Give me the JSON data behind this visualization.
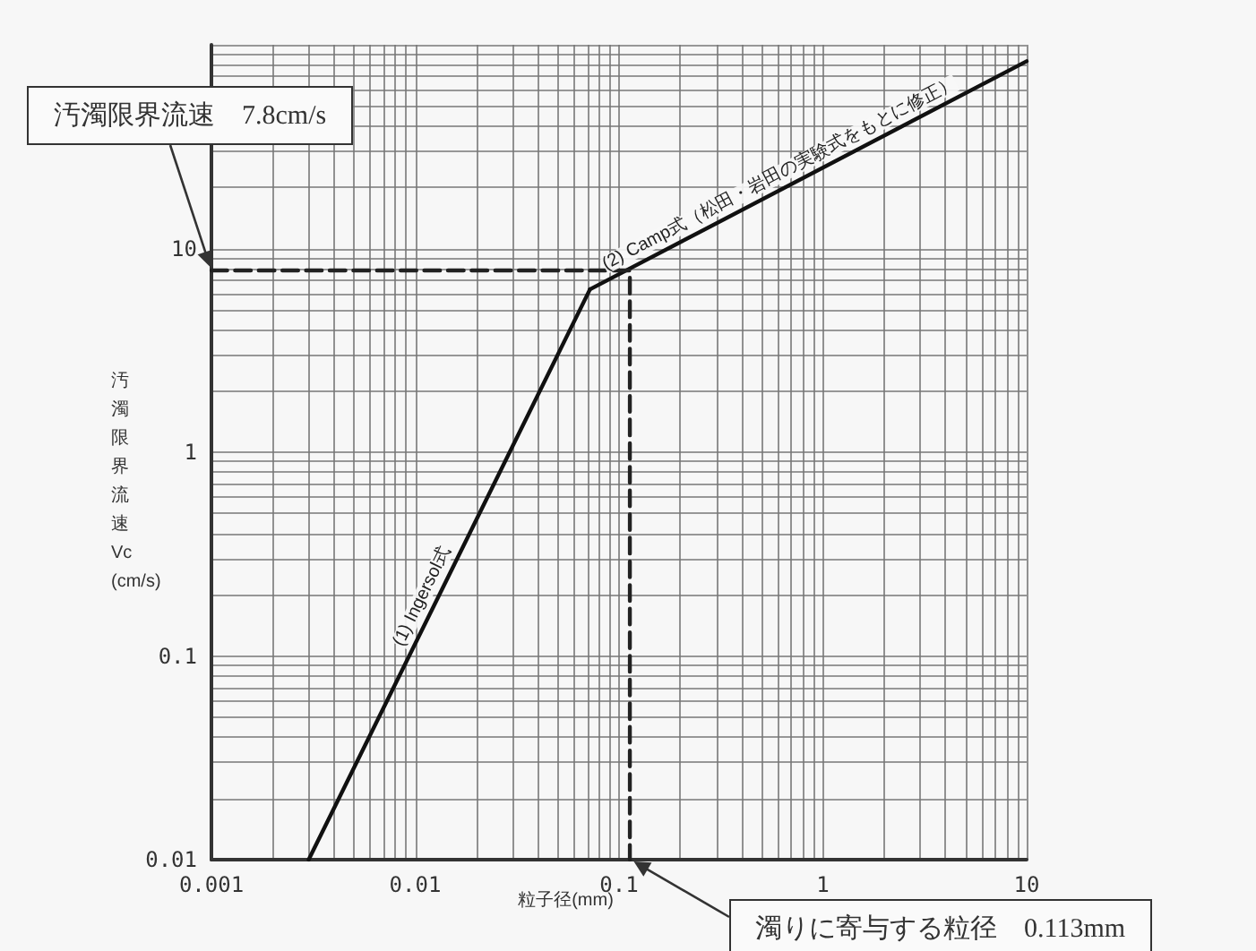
{
  "chart_data": {
    "type": "line",
    "xlabel": "粒子径(mm)",
    "ylabel": "汚濁限界流速 Vc (cm/s)",
    "log": "xy",
    "grid": true,
    "legend": false,
    "marker": "none",
    "xlim": [
      0.001,
      10
    ],
    "xticks": [
      0.001,
      0.01,
      0.1,
      1,
      10
    ],
    "ylim": [
      0.01,
      100
    ],
    "yticks": [
      0.01,
      0.1,
      1,
      10
    ],
    "series": [
      {
        "name": "(1) Ingersol式",
        "color": "#111111",
        "x": [
          0.003,
          0.072
        ],
        "values": [
          0.01,
          6.3
        ]
      },
      {
        "name": "(2) Camp式（松田・岩田の実験式をもとに修正）",
        "color": "#111111",
        "x": [
          0.072,
          10
        ],
        "values": [
          6.3,
          83
        ]
      },
      {
        "color": "#222222",
        "line_style": "dashed",
        "x": [
          0.001,
          0.113,
          0.113
        ],
        "values": [
          7.8,
          7.8,
          0.01
        ]
      }
    ],
    "annotations": [
      "汚濁限界流速　7.8cm/s",
      "濁りに寄与する粒径　0.113mm"
    ]
  }
}
